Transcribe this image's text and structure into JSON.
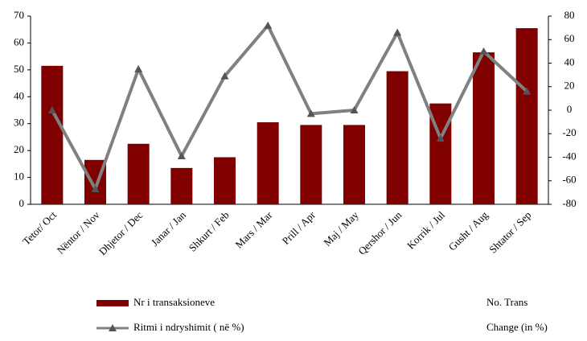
{
  "chart_data": {
    "type": "combo",
    "categories": [
      "Tetor/ Oct",
      "Nëntor / Nov",
      "Dhjetor / Dec",
      "Janar / Jan",
      "Shkurt / Feb",
      "Mars / Mar",
      "Prill / Apr",
      "Maj / May",
      "Qershor / Jun",
      "Korrik / Jul",
      "Gusht / Aug",
      "Shtator / Sep"
    ],
    "series": [
      {
        "name": "Nr i transaksioneve",
        "name_en": "No. Trans",
        "type": "bar",
        "color": "#800000",
        "axis": "y",
        "values": [
          51.5,
          16.5,
          22.5,
          13.5,
          17.5,
          30.5,
          29.5,
          29.5,
          49.5,
          37.5,
          56.5,
          65.5
        ]
      },
      {
        "name": "Ritmi i ndryshimit ( në %)",
        "name_en": "Change (in %)",
        "type": "line",
        "color": "#808080",
        "marker_color": "#555555",
        "axis": "y2",
        "values": [
          0,
          -67,
          35,
          -39,
          29,
          72,
          -3,
          0,
          66,
          -24,
          50,
          16
        ]
      }
    ],
    "ylim": [
      0,
      70
    ],
    "yticks": [
      0,
      10,
      20,
      30,
      40,
      50,
      60,
      70
    ],
    "y2lim": [
      -80,
      80
    ],
    "y2ticks": [
      -80,
      -60,
      -40,
      -20,
      0,
      20,
      40,
      60,
      80
    ]
  }
}
